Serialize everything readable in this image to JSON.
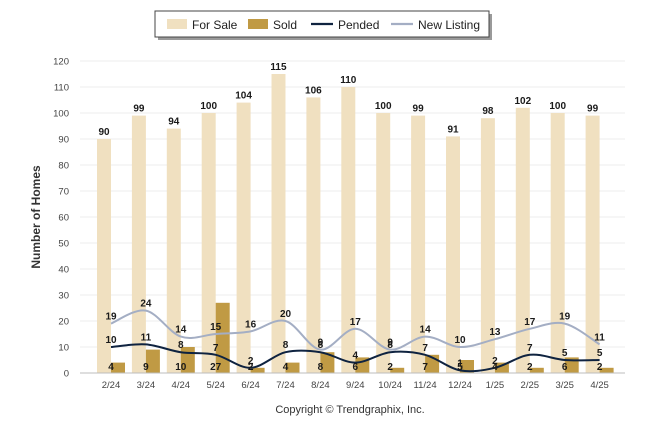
{
  "chart_data": {
    "type": "bar",
    "ylabel": "Number of Homes",
    "footer": "Copyright © Trendgraphix, Inc.",
    "ylim": [
      0,
      120
    ],
    "yticks": [
      0,
      10,
      20,
      30,
      40,
      50,
      60,
      70,
      80,
      90,
      100,
      110,
      120
    ],
    "grid": true,
    "legend_position": "top-center",
    "categories": [
      "2/24",
      "3/24",
      "4/24",
      "5/24",
      "6/24",
      "7/24",
      "8/24",
      "9/24",
      "10/24",
      "11/24",
      "12/24",
      "1/25",
      "2/25",
      "3/25",
      "4/25"
    ],
    "series": [
      {
        "name": "For Sale",
        "kind": "bar",
        "color": "#f0e0c0",
        "values": [
          90,
          99,
          94,
          100,
          104,
          115,
          106,
          110,
          100,
          99,
          91,
          98,
          102,
          100,
          99
        ]
      },
      {
        "name": "Sold",
        "kind": "bar",
        "color": "#c09a44",
        "values": [
          4,
          9,
          10,
          27,
          2,
          4,
          8,
          6,
          2,
          7,
          5,
          4,
          2,
          6,
          2
        ]
      },
      {
        "name": "Pended",
        "kind": "line",
        "color": "#0f2340",
        "values": [
          10,
          11,
          8,
          7,
          2,
          8,
          8,
          4,
          8,
          7,
          1,
          2,
          7,
          5,
          5
        ]
      },
      {
        "name": "New Listing",
        "kind": "line",
        "color": "#a4aec4",
        "values": [
          19,
          24,
          14,
          15,
          16,
          20,
          9,
          17,
          9,
          14,
          10,
          13,
          17,
          19,
          11
        ]
      }
    ]
  }
}
